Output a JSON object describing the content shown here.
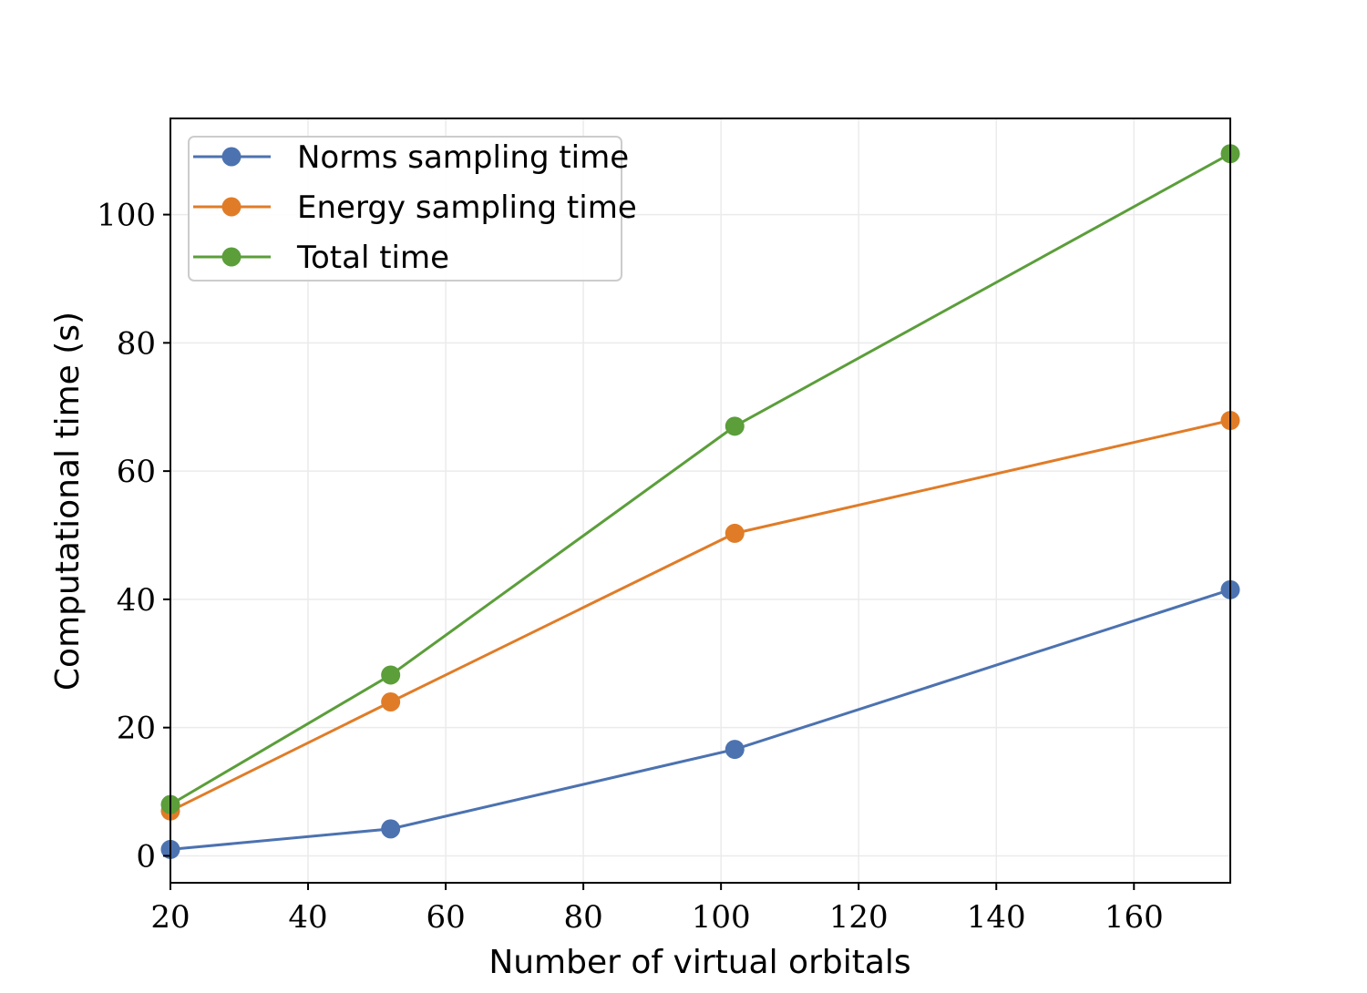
{
  "chart_data": {
    "type": "line",
    "title": "",
    "xlabel": "Number of virtual orbitals",
    "ylabel": "Computational time (s)",
    "xlim": [
      20,
      174
    ],
    "ylim": [
      -4.2,
      115
    ],
    "xticks": [
      20,
      40,
      60,
      80,
      100,
      120,
      140,
      160
    ],
    "yticks": [
      0,
      20,
      40,
      60,
      80,
      100
    ],
    "grid": true,
    "legend_position": "top-left",
    "x": [
      20,
      52,
      102,
      174
    ],
    "series": [
      {
        "name": "Norms sampling time",
        "color": "#4c72b0",
        "values": [
          1.0,
          4.2,
          16.6,
          41.5
        ]
      },
      {
        "name": "Energy sampling time",
        "color": "#e07c28",
        "values": [
          7.0,
          24.0,
          50.3,
          67.9
        ]
      },
      {
        "name": "Total time",
        "color": "#5b9e3a",
        "values": [
          8.0,
          28.2,
          67.0,
          109.5
        ]
      }
    ]
  }
}
